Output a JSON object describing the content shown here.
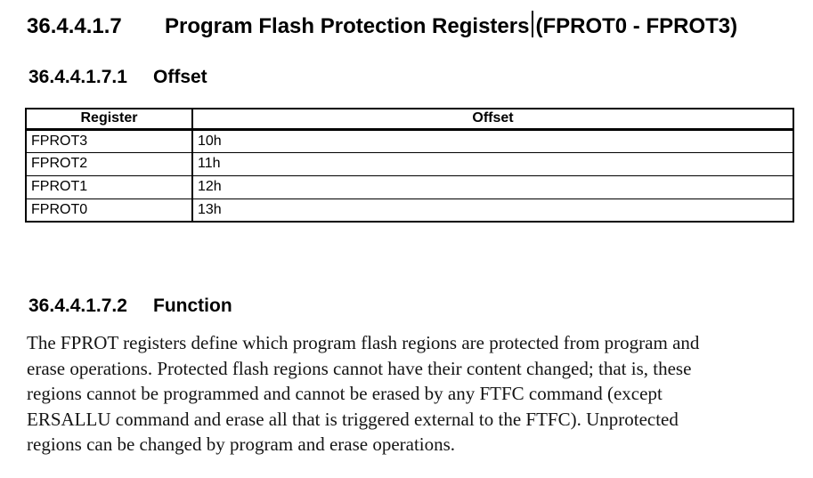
{
  "heading1": {
    "number": "36.4.4.1.7",
    "title": "Program Flash Protection Registers",
    "suffix": "(FPROT0 - FPROT3)"
  },
  "heading2": {
    "number": "36.4.4.1.7.1",
    "title": "Offset"
  },
  "heading3": {
    "number": "36.4.4.1.7.2",
    "title": "Function"
  },
  "offset_table": {
    "columns": [
      "Register",
      "Offset"
    ],
    "rows": [
      [
        "FPROT3",
        "10h"
      ],
      [
        "FPROT2",
        "11h"
      ],
      [
        "FPROT1",
        "12h"
      ],
      [
        "FPROT0",
        "13h"
      ]
    ]
  },
  "function_text": {
    "lines": [
      "The FPROT registers define which program flash regions are protected from program and",
      "erase operations. Protected flash regions cannot have their content changed; that is, these",
      "regions cannot be programmed and cannot be erased by any FTFC command (except",
      "ERSALLU command and erase all that is triggered external to the FTFC). Unprotected",
      "regions can be changed by program and erase operations."
    ]
  },
  "colors": {
    "background": "#ffffff",
    "text": "#000000",
    "border": "#000000"
  }
}
